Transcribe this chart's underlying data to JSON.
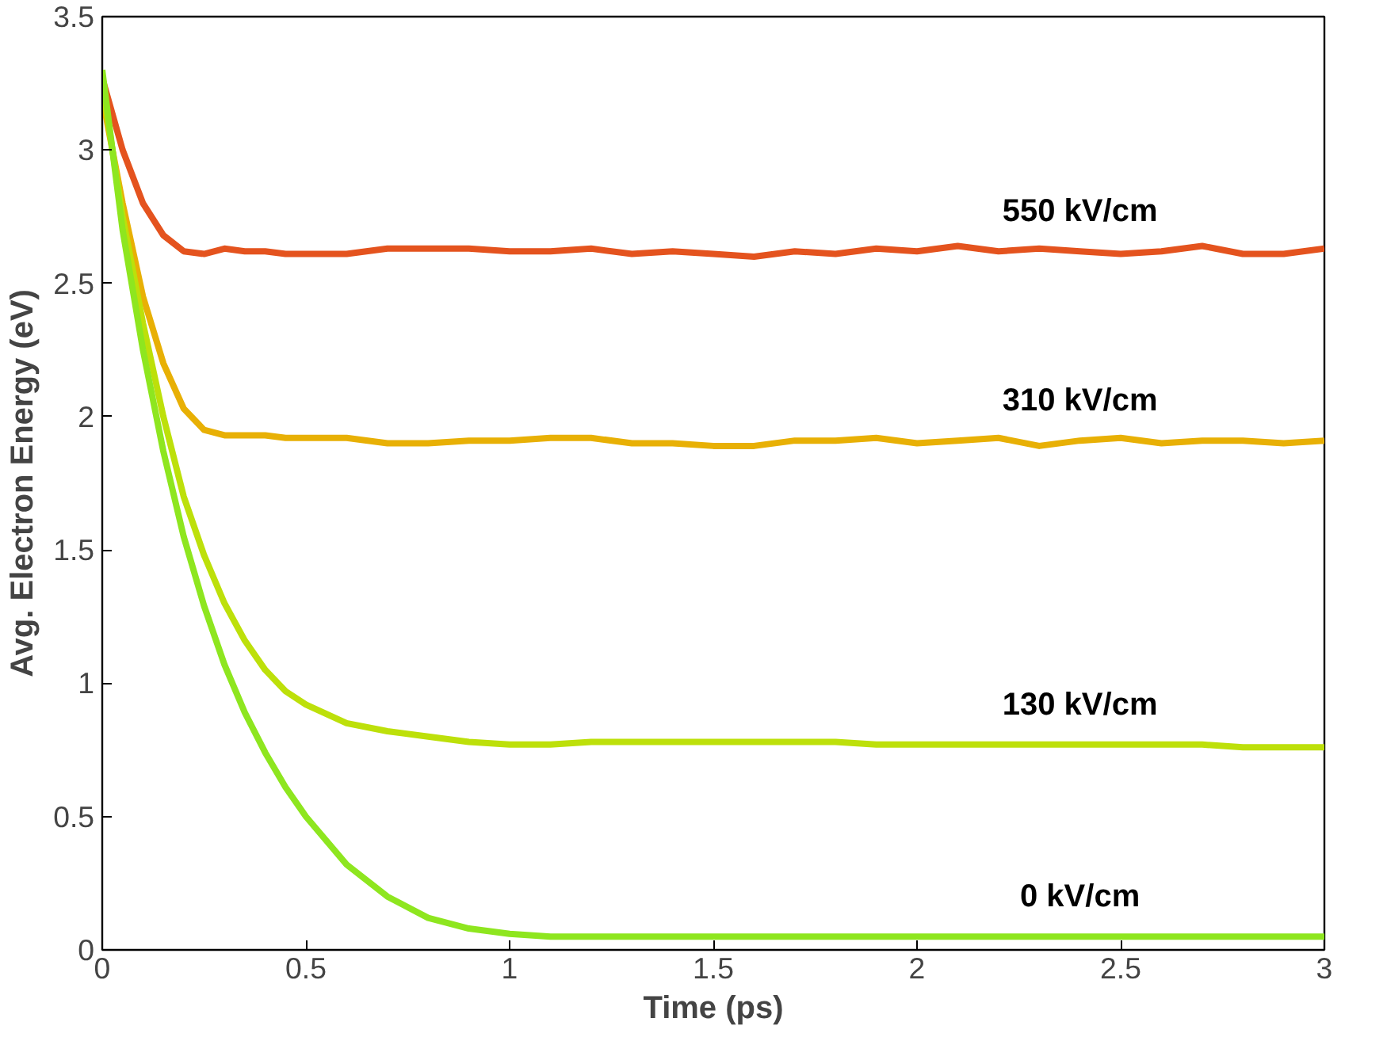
{
  "chart_data": {
    "type": "line",
    "xlabel": "Time (ps)",
    "ylabel": "Avg. Electron Energy (eV)",
    "x": [
      0,
      0.05,
      0.1,
      0.15,
      0.2,
      0.25,
      0.3,
      0.35,
      0.4,
      0.45,
      0.5,
      0.6,
      0.7,
      0.8,
      0.9,
      1.0,
      1.1,
      1.2,
      1.3,
      1.4,
      1.5,
      1.6,
      1.7,
      1.8,
      1.9,
      2.0,
      2.1,
      2.2,
      2.3,
      2.4,
      2.5,
      2.6,
      2.7,
      2.8,
      2.9,
      3.0
    ],
    "series": [
      {
        "name": "550 kV/cm",
        "color": "#e4531e",
        "values": [
          3.27,
          3.0,
          2.8,
          2.68,
          2.62,
          2.61,
          2.63,
          2.62,
          2.62,
          2.61,
          2.61,
          2.61,
          2.63,
          2.63,
          2.63,
          2.62,
          2.62,
          2.63,
          2.61,
          2.62,
          2.61,
          2.6,
          2.62,
          2.61,
          2.63,
          2.62,
          2.64,
          2.62,
          2.63,
          2.62,
          2.61,
          2.62,
          2.64,
          2.61,
          2.61,
          2.63
        ]
      },
      {
        "name": "310 kV/cm",
        "color": "#e8b005",
        "values": [
          3.2,
          2.8,
          2.45,
          2.2,
          2.03,
          1.95,
          1.93,
          1.93,
          1.93,
          1.92,
          1.92,
          1.92,
          1.9,
          1.9,
          1.91,
          1.91,
          1.92,
          1.92,
          1.9,
          1.9,
          1.89,
          1.89,
          1.91,
          1.91,
          1.92,
          1.9,
          1.91,
          1.92,
          1.89,
          1.91,
          1.92,
          1.9,
          1.91,
          1.91,
          1.9,
          1.91
        ]
      },
      {
        "name": "130 kV/cm",
        "color": "#bde00a",
        "values": [
          3.25,
          2.75,
          2.35,
          2.0,
          1.7,
          1.48,
          1.3,
          1.16,
          1.05,
          0.97,
          0.92,
          0.85,
          0.82,
          0.8,
          0.78,
          0.77,
          0.77,
          0.78,
          0.78,
          0.78,
          0.78,
          0.78,
          0.78,
          0.78,
          0.77,
          0.77,
          0.77,
          0.77,
          0.77,
          0.77,
          0.77,
          0.77,
          0.77,
          0.76,
          0.76,
          0.76
        ]
      },
      {
        "name": "0 kV/cm",
        "color": "#8ee61f",
        "values": [
          3.3,
          2.7,
          2.25,
          1.87,
          1.55,
          1.29,
          1.07,
          0.89,
          0.74,
          0.61,
          0.5,
          0.32,
          0.2,
          0.12,
          0.08,
          0.06,
          0.05,
          0.05,
          0.05,
          0.05,
          0.05,
          0.05,
          0.05,
          0.05,
          0.05,
          0.05,
          0.05,
          0.05,
          0.05,
          0.05,
          0.05,
          0.05,
          0.05,
          0.05,
          0.05,
          0.05
        ]
      }
    ],
    "xlim": [
      0,
      3
    ],
    "ylim": [
      0,
      3.5
    ],
    "xticks": [
      0,
      0.5,
      1,
      1.5,
      2,
      2.5,
      3
    ],
    "yticks": [
      0,
      0.5,
      1,
      1.5,
      2,
      2.5,
      3,
      3.5
    ],
    "grid": false,
    "line_style": "solid",
    "marker": "none"
  }
}
